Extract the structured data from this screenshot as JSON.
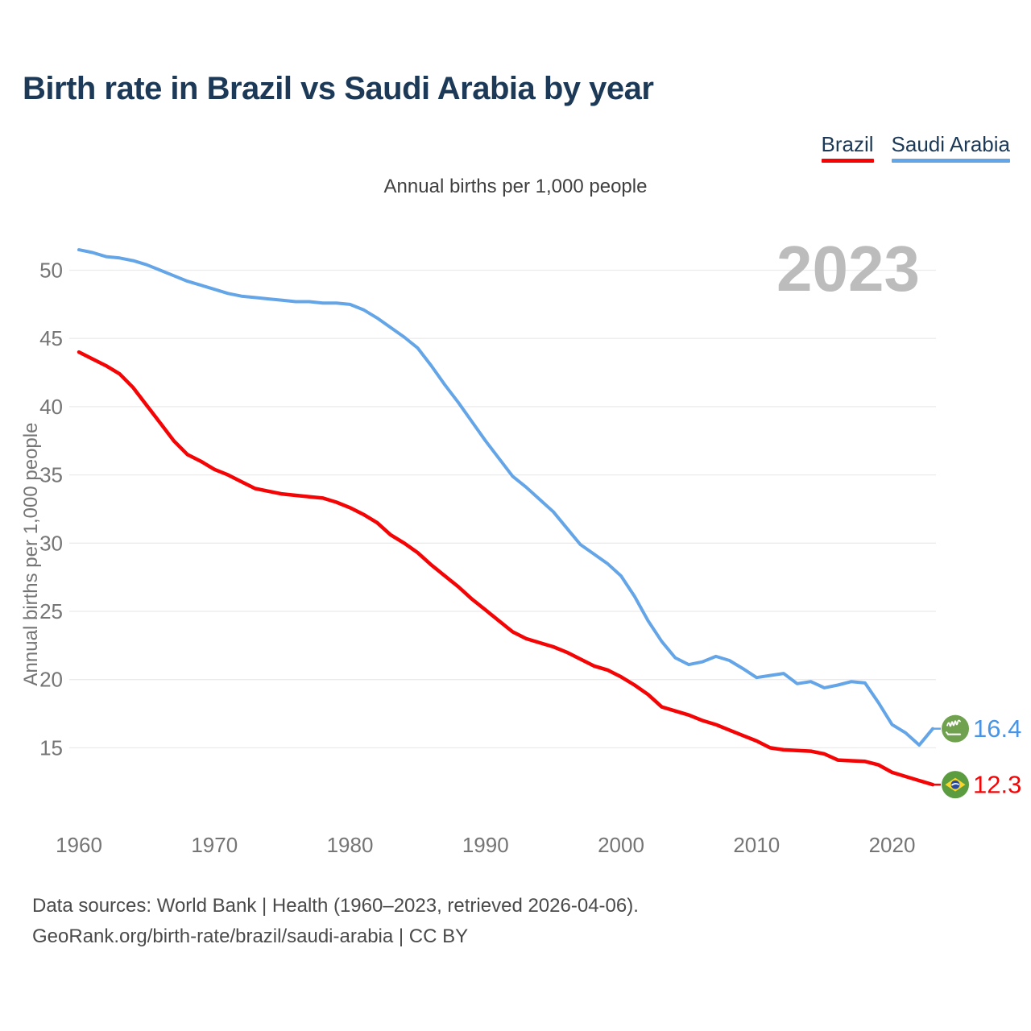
{
  "header": {
    "title": "Birth rate in Brazil vs Saudi Arabia by year",
    "legend": [
      {
        "label": "Brazil",
        "color": "#f40404"
      },
      {
        "label": "Saudi Arabia",
        "color": "#64a5e8"
      }
    ]
  },
  "subtitle": "Annual births per 1,000 people",
  "watermark": "2023",
  "chart_data": {
    "type": "line",
    "title": "Annual births per 1,000 people",
    "xlabel": "",
    "ylabel": "Annual births per 1,000 people",
    "x_start": 1960,
    "x_end": 2023,
    "xticks": [
      1960,
      1970,
      1980,
      1990,
      2000,
      2010,
      2020
    ],
    "yticks": [
      15,
      20,
      25,
      30,
      35,
      40,
      45,
      50
    ],
    "ylim": [
      12,
      52.5
    ],
    "grid": true,
    "legend_position": "top-right",
    "watermark_color": "#bcbcbc",
    "grid_color": "#ebebeb",
    "tick_color": "#757575",
    "series": [
      {
        "name": "Brazil",
        "color": "#f40404",
        "label_color": "#f40404",
        "icon": "brazil-flag-icon",
        "end_label": "12.3",
        "values": [
          44.0,
          43.5,
          43.0,
          42.4,
          41.4,
          40.1,
          38.8,
          37.5,
          36.5,
          36.0,
          35.4,
          35.0,
          34.5,
          34.0,
          33.8,
          33.6,
          33.5,
          33.4,
          33.3,
          33.0,
          32.6,
          32.1,
          31.5,
          30.6,
          30.0,
          29.3,
          28.4,
          27.6,
          26.8,
          25.9,
          25.1,
          24.3,
          23.5,
          23.0,
          22.7,
          22.4,
          22.0,
          21.5,
          21.0,
          20.7,
          20.2,
          19.6,
          18.9,
          18.0,
          17.7,
          17.4,
          17.0,
          16.7,
          16.3,
          15.9,
          15.5,
          15.0,
          14.85,
          14.8,
          14.75,
          14.55,
          14.1,
          14.05,
          14.0,
          13.75,
          13.2,
          12.9,
          12.6,
          12.3
        ]
      },
      {
        "name": "Saudi Arabia",
        "color": "#64a5e8",
        "label_color": "#4895e5",
        "icon": "saudi-arabia-flag-icon",
        "end_label": "16.4",
        "values": [
          51.5,
          51.3,
          51.0,
          50.9,
          50.7,
          50.4,
          50.0,
          49.6,
          49.2,
          48.9,
          48.6,
          48.3,
          48.1,
          48.0,
          47.9,
          47.8,
          47.7,
          47.7,
          47.6,
          47.6,
          47.5,
          47.1,
          46.5,
          45.8,
          45.1,
          44.3,
          43.0,
          41.6,
          40.3,
          38.9,
          37.5,
          36.2,
          34.9,
          34.1,
          33.2,
          32.3,
          31.1,
          29.9,
          29.2,
          28.5,
          27.6,
          26.1,
          24.3,
          22.8,
          21.6,
          21.1,
          21.3,
          21.7,
          21.4,
          20.8,
          20.15,
          20.3,
          20.45,
          19.7,
          19.85,
          19.4,
          19.6,
          19.85,
          19.75,
          18.3,
          16.7,
          16.1,
          15.2,
          16.4
        ]
      }
    ],
    "flag_colors": {
      "saudi_bg": "#6fa14e",
      "brazil_bg": "#5b9c40",
      "brazil_diamond": "#f8d62a",
      "brazil_globe": "#2a4b9b"
    }
  },
  "footer": {
    "line1": "Data sources: World Bank | Health (1960–2023, retrieved 2026-04-06).",
    "line2": "GeoRank.org/birth-rate/brazil/saudi-arabia | CC BY"
  }
}
